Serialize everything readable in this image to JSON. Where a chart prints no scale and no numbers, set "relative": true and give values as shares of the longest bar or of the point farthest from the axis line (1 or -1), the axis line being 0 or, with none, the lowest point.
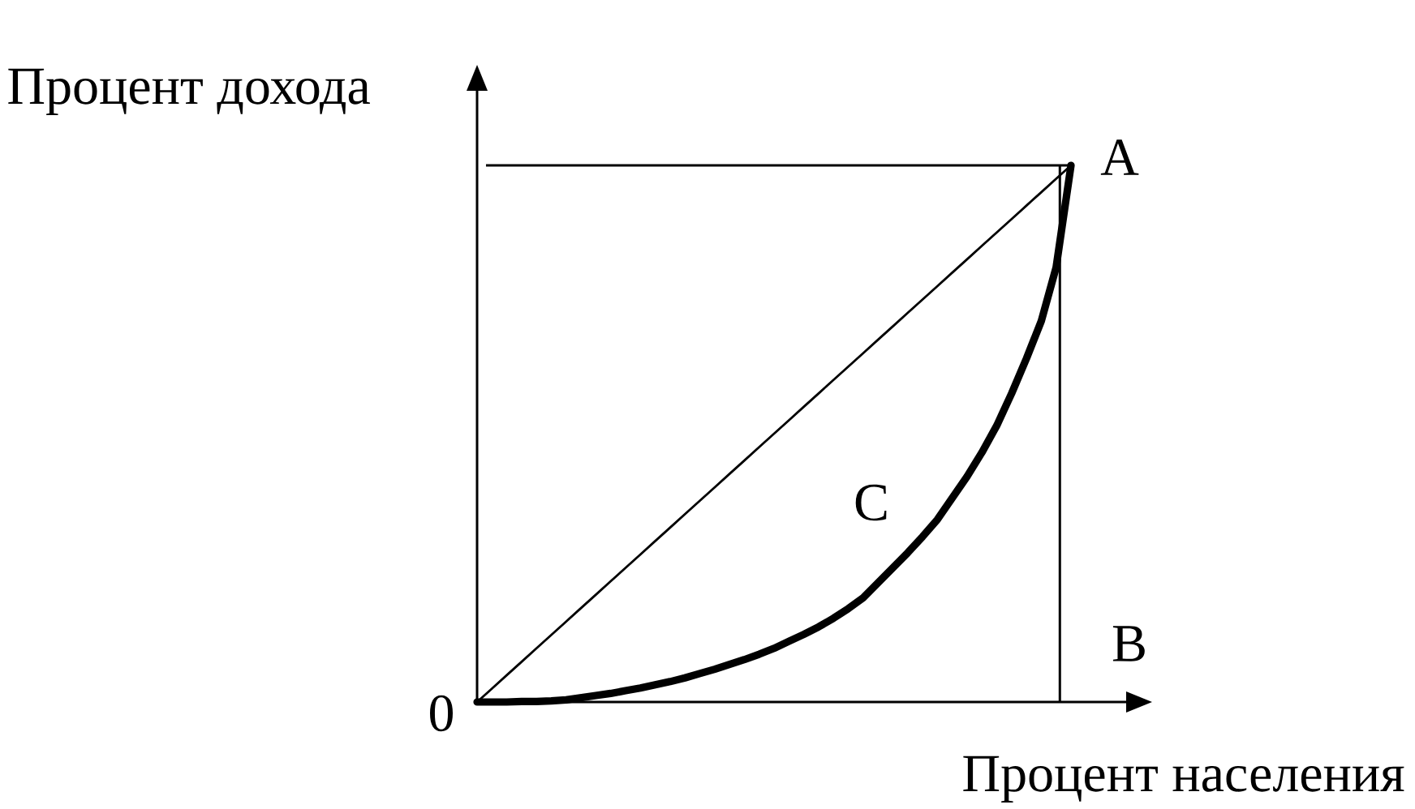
{
  "chart_data": {
    "type": "line",
    "relative": true,
    "xlabel": "Процент населения",
    "ylabel": "Процент дохода",
    "categories": [
      null,
      null,
      null,
      null,
      null,
      null,
      null,
      null,
      null,
      null,
      null,
      null,
      null,
      null,
      null,
      null,
      null,
      null,
      null,
      null,
      null,
      null,
      null,
      null,
      null,
      null,
      null,
      null,
      null,
      null,
      null,
      null,
      null,
      null,
      null,
      null,
      null,
      null,
      null,
      null,
      null
    ],
    "series": [
      {
        "color": "#000000",
        "values": [
          0,
          0.025,
          0.05,
          0.075,
          0.1,
          0.125,
          0.15,
          0.175,
          0.2,
          0.225,
          0.25,
          0.275,
          0.3,
          0.325,
          0.35,
          0.375,
          0.4,
          0.425,
          0.45,
          0.475,
          0.5,
          0.525,
          0.55,
          0.575,
          0.6,
          0.625,
          0.65,
          0.675,
          0.7,
          0.725,
          0.75,
          0.775,
          0.8,
          0.825,
          0.85,
          0.875,
          0.9,
          0.925,
          0.95,
          0.975,
          1
        ]
      },
      {
        "color": "#000000",
        "values": [
          0,
          0,
          0,
          0.001,
          0.001,
          0.002,
          0.004,
          0.008,
          0.012,
          0.016,
          0.021,
          0.026,
          0.032,
          0.038,
          0.045,
          0.053,
          0.061,
          0.07,
          0.079,
          0.089,
          0.1,
          0.113,
          0.126,
          0.14,
          0.156,
          0.174,
          0.194,
          0.222,
          0.25,
          0.278,
          0.308,
          0.34,
          0.38,
          0.42,
          0.465,
          0.515,
          0.575,
          0.64,
          0.71,
          0.81,
          1
        ]
      }
    ],
    "annotations": [
      "A",
      "C",
      "B",
      "0"
    ]
  }
}
